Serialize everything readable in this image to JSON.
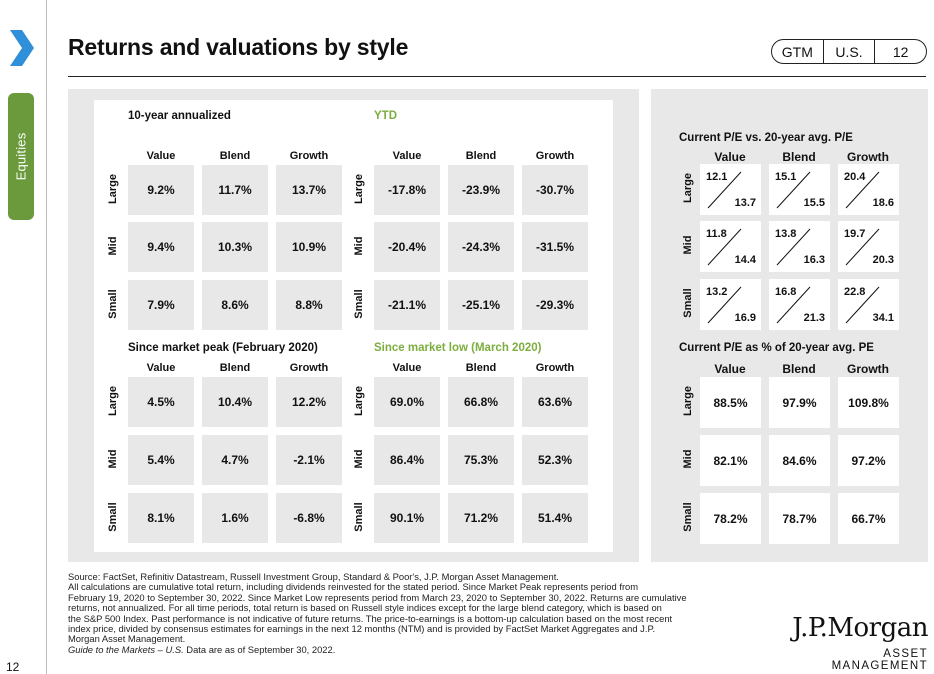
{
  "page": {
    "title": "Returns and valuations by style",
    "badge": [
      "GTM",
      "U.S.",
      "12"
    ],
    "sidebar_tab": "Equities",
    "page_number": "12"
  },
  "returns": {
    "col_headers": [
      "Value",
      "Blend",
      "Growth"
    ],
    "row_headers": [
      "Large",
      "Mid",
      "Small"
    ],
    "quadrants": [
      {
        "title": "10-year annualized",
        "cells": [
          [
            "9.2%",
            "11.7%",
            "13.7%"
          ],
          [
            "9.4%",
            "10.3%",
            "10.9%"
          ],
          [
            "7.9%",
            "8.6%",
            "8.8%"
          ]
        ]
      },
      {
        "title": "YTD",
        "cells": [
          [
            "-17.8%",
            "-23.9%",
            "-30.7%"
          ],
          [
            "-20.4%",
            "-24.3%",
            "-31.5%"
          ],
          [
            "-21.1%",
            "-25.1%",
            "-29.3%"
          ]
        ]
      },
      {
        "title": "Since market peak (February 2020)",
        "cells": [
          [
            "4.5%",
            "10.4%",
            "12.2%"
          ],
          [
            "5.4%",
            "4.7%",
            "-2.1%"
          ],
          [
            "8.1%",
            "1.6%",
            "-6.8%"
          ]
        ]
      },
      {
        "title": "Since market low (March 2020)",
        "cells": [
          [
            "69.0%",
            "66.8%",
            "63.6%"
          ],
          [
            "86.4%",
            "75.3%",
            "52.3%"
          ],
          [
            "90.1%",
            "71.2%",
            "51.4%"
          ]
        ]
      }
    ]
  },
  "valuations": {
    "pe_title": "Current P/E vs. 20-year avg. P/E",
    "pe_cells": [
      [
        [
          "12.1",
          "13.7"
        ],
        [
          "15.1",
          "15.5"
        ],
        [
          "20.4",
          "18.6"
        ]
      ],
      [
        [
          "11.8",
          "14.4"
        ],
        [
          "13.8",
          "16.3"
        ],
        [
          "19.7",
          "20.3"
        ]
      ],
      [
        [
          "13.2",
          "16.9"
        ],
        [
          "16.8",
          "21.3"
        ],
        [
          "22.8",
          "34.1"
        ]
      ]
    ],
    "pct_title": "Current P/E as % of 20-year avg. PE",
    "pct_cells": [
      [
        "88.5%",
        "97.9%",
        "109.8%"
      ],
      [
        "82.1%",
        "84.6%",
        "97.2%"
      ],
      [
        "78.2%",
        "78.7%",
        "66.7%"
      ]
    ]
  },
  "footer": {
    "source": "Source: FactSet, Refinitiv Datastream, Russell Investment Group, Standard & Poor's, J.P. Morgan Asset Management.",
    "lines": [
      "All calculations are cumulative total return, including dividends reinvested for the stated period. Since Market Peak represents period from",
      "February 19, 2020 to September 30, 2022. Since Market Low represents period from March 23, 2020 to September 30, 2022. Returns are cumulative",
      "returns, not annualized. For all time periods, total return is based on Russell style indices except for the large blend category, which is based on",
      "the S&P 500 Index. Past performance is not indicative of future returns. The price-to-earnings is a bottom-up calculation based on the most recent",
      "index price, divided by consensus estimates for earnings in the next 12 months (NTM) and is provided by FactSet Market Aggregates and J.P.",
      "Morgan Asset Management."
    ],
    "guide_italic": "Guide to the Markets – U.S.",
    "guide_rest": " Data are as of September 30, 2022."
  },
  "logo": {
    "name": "J.P.Morgan",
    "sub": "ASSET MANAGEMENT"
  },
  "colors": {
    "accent_green": "#7cad3e",
    "tab_green": "#6a9a3c",
    "chevron_blue": "#2f8fd8",
    "panel_gray": "#e8e8e8"
  }
}
